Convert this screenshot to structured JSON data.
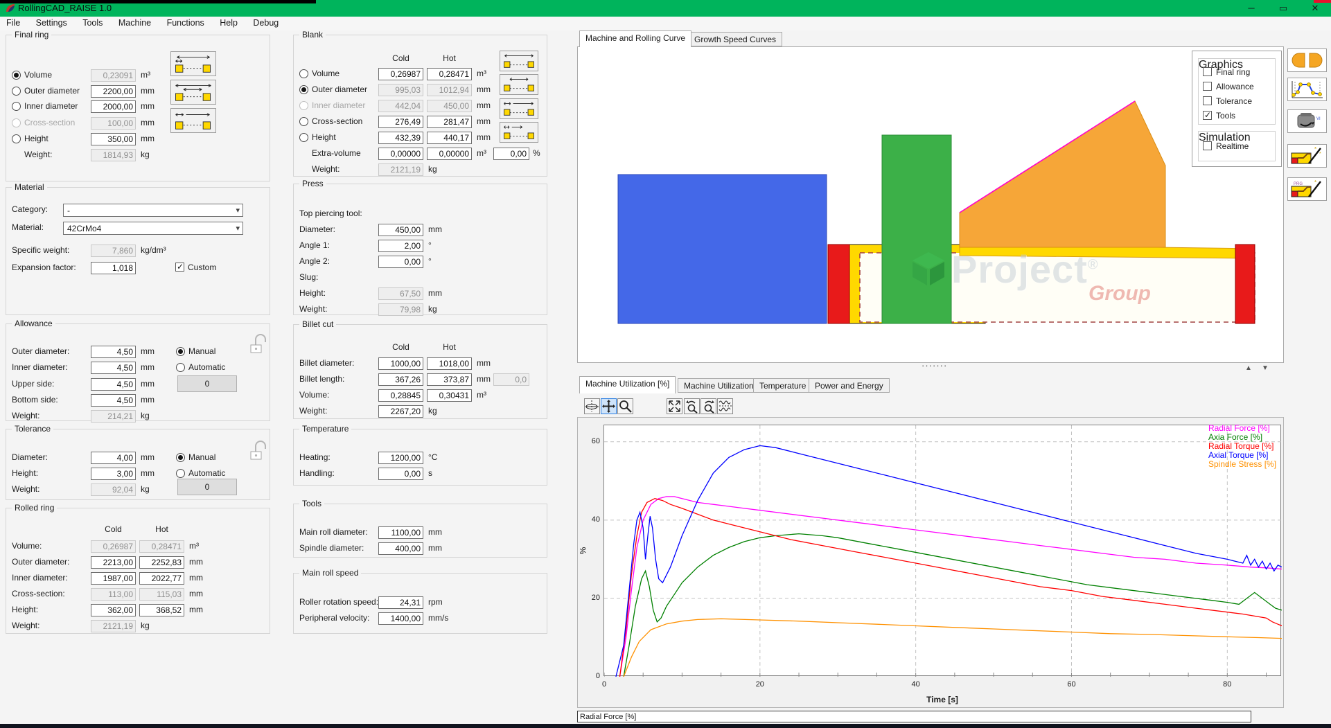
{
  "colors": {
    "titlebar": "#00b45c",
    "blue_shape": "#4468e8",
    "green_shape": "#3cb048",
    "orange_shape": "#f6a638",
    "yellow_shape": "#ffd800",
    "red_shape": "#e81a1a",
    "magenta_edge": "#ff00cc",
    "dashed_outline": "#a14040"
  },
  "window": {
    "title": "RollingCAD_RAISE 1.0",
    "minimize": "─",
    "maximize": "▭",
    "close": "✕"
  },
  "menu": {
    "items": [
      "File",
      "Settings",
      "Tools",
      "Machine",
      "Functions",
      "Help",
      "Debug"
    ]
  },
  "left": {
    "final_ring": {
      "title": "Final ring",
      "rows": [
        {
          "label": "Volume",
          "value": "0,23091",
          "unit": "m³"
        },
        {
          "label": "Outer diameter",
          "value": "2200,00",
          "unit": "mm"
        },
        {
          "label": "Inner diameter",
          "value": "2000,00",
          "unit": "mm"
        },
        {
          "label": "Cross-section",
          "value": "100,00",
          "unit": "mm"
        },
        {
          "label": "Height",
          "value": "350,00",
          "unit": "mm"
        },
        {
          "label": "Weight:",
          "value": "1814,93",
          "unit": "kg"
        }
      ]
    },
    "material": {
      "title": "Material",
      "category_label": "Category:",
      "category": "-",
      "material_label": "Material:",
      "material": "42CrMo4",
      "spec_label": "Specific weight:",
      "spec": "7,860",
      "spec_unit": "kg/dm³",
      "exp_label": "Expansion factor:",
      "exp": "1,018",
      "custom": "Custom"
    },
    "allowance": {
      "title": "Allowance",
      "rows": [
        {
          "label": "Outer diameter:",
          "value": "4,50",
          "unit": "mm"
        },
        {
          "label": "Inner diameter:",
          "value": "4,50",
          "unit": "mm"
        },
        {
          "label": "Upper side:",
          "value": "4,50",
          "unit": "mm"
        },
        {
          "label": "Bottom side:",
          "value": "4,50",
          "unit": "mm"
        },
        {
          "label": "Weight:",
          "value": "214,21",
          "unit": "kg"
        }
      ],
      "manual": "Manual",
      "automatic": "Automatic",
      "zero": "0"
    },
    "tolerance": {
      "title": "Tolerance",
      "rows": [
        {
          "label": "Diameter:",
          "value": "4,00",
          "unit": "mm"
        },
        {
          "label": "Height:",
          "value": "3,00",
          "unit": "mm"
        },
        {
          "label": "Weight:",
          "value": "92,04",
          "unit": "kg"
        }
      ],
      "manual": "Manual",
      "automatic": "Automatic",
      "zero": "0"
    },
    "rolled_ring": {
      "title": "Rolled ring",
      "cold": "Cold",
      "hot": "Hot",
      "rows": [
        {
          "label": "Volume:",
          "cold": "0,26987",
          "hot": "0,28471",
          "unit": "m³"
        },
        {
          "label": "Outer diameter:",
          "cold": "2213,00",
          "hot": "2252,83",
          "unit": "mm"
        },
        {
          "label": "Inner diameter:",
          "cold": "1987,00",
          "hot": "2022,77",
          "unit": "mm"
        },
        {
          "label": "Cross-section:",
          "cold": "113,00",
          "hot": "115,03",
          "unit": "mm"
        },
        {
          "label": "Height:",
          "cold": "362,00",
          "hot": "368,52",
          "unit": "mm"
        },
        {
          "label": "Weight:",
          "cold": "2121,19",
          "unit": "kg"
        }
      ]
    }
  },
  "middle": {
    "blank": {
      "title": "Blank",
      "cold": "Cold",
      "hot": "Hot",
      "rows": [
        {
          "label": "Volume",
          "cold": "0,26987",
          "hot": "0,28471",
          "unit": "m³"
        },
        {
          "label": "Outer diameter",
          "cold": "995,03",
          "hot": "1012,94",
          "unit": "mm"
        },
        {
          "label": "Inner diameter",
          "cold": "442,04",
          "hot": "450,00",
          "unit": "mm"
        },
        {
          "label": "Cross-section",
          "cold": "276,49",
          "hot": "281,47",
          "unit": "mm"
        },
        {
          "label": "Height",
          "cold": "432,39",
          "hot": "440,17",
          "unit": "mm"
        },
        {
          "label": "Extra-volume",
          "cold": "0,00000",
          "hot": "0,00000",
          "unit": "m³"
        }
      ],
      "extra_pct": "0,00",
      "pct_unit": "%",
      "weight_label": "Weight:",
      "weight": "2121,19",
      "weight_unit": "kg"
    },
    "press": {
      "title": "Press",
      "tool_label": "Top piercing tool:",
      "diameter": {
        "label": "Diameter:",
        "value": "450,00",
        "unit": "mm"
      },
      "angle1": {
        "label": "Angle 1:",
        "value": "2,00",
        "unit": "°"
      },
      "angle2": {
        "label": "Angle 2:",
        "value": "0,00",
        "unit": "°"
      },
      "slug_label": "Slug:",
      "height": {
        "label": "Height:",
        "value": "67,50",
        "unit": "mm"
      },
      "weight": {
        "label": "Weight:",
        "value": "79,98",
        "unit": "kg"
      }
    },
    "billet_cut": {
      "title": "Billet cut",
      "cold": "Cold",
      "hot": "Hot",
      "diameter": {
        "label": "Billet diameter:",
        "cold": "1000,00",
        "hot": "1018,00",
        "unit": "mm"
      },
      "length": {
        "label": "Billet length:",
        "cold": "367,26",
        "hot": "373,87",
        "unit": "mm",
        "extra": "0,0"
      },
      "volume": {
        "label": "Volume:",
        "cold": "0,28845",
        "hot": "0,30431",
        "unit": "m³"
      },
      "weight": {
        "label": "Weight:",
        "value": "2267,20",
        "unit": "kg"
      }
    },
    "temperature": {
      "title": "Temperature",
      "heating": {
        "label": "Heating:",
        "value": "1200,00",
        "unit": "°C"
      },
      "handling": {
        "label": "Handling:",
        "value": "0,00",
        "unit": "s"
      }
    },
    "tools": {
      "title": "Tools",
      "main_roll": {
        "label": "Main roll diameter:",
        "value": "1100,00",
        "unit": "mm"
      },
      "spindle": {
        "label": "Spindle diameter:",
        "value": "400,00",
        "unit": "mm"
      }
    },
    "main_roll_speed": {
      "title": "Main roll speed",
      "rotation": {
        "label": "Roller rotation speed:",
        "value": "24,31",
        "unit": "rpm"
      },
      "velocity": {
        "label": "Peripheral velocity:",
        "value": "1400,00",
        "unit": "mm/s"
      }
    }
  },
  "viewer": {
    "tabs": [
      "Machine and Rolling Curve",
      "Growth Speed Curves"
    ],
    "graphics": {
      "title": "Graphics",
      "items": [
        {
          "label": "Final ring",
          "checked": false
        },
        {
          "label": "Allowance",
          "checked": false
        },
        {
          "label": "Tolerance",
          "checked": false
        },
        {
          "label": "Tools",
          "checked": true
        }
      ]
    },
    "simulation": {
      "title": "Simulation",
      "realtime": "Realtime",
      "realtime_checked": false
    },
    "watermark": {
      "name": "Project",
      "reg": "®",
      "group": "Group"
    },
    "dots": "·······"
  },
  "right_toolbar": {
    "vi": "VI",
    "prg": "PRG"
  },
  "chart_tabs": [
    "Machine Utilization [%]",
    "Machine Utilization",
    "Temperature",
    "Power and Energy"
  ],
  "status_bar": "Radial Force [%]",
  "chart_data": {
    "type": "line",
    "title": "Machine Utilization [%]",
    "xlabel": "Time [s]",
    "ylabel": "%",
    "xlim": [
      0,
      87
    ],
    "ylim": [
      0,
      64.2
    ],
    "xticks": [
      0,
      20,
      40,
      60,
      80
    ],
    "yticks": [
      0,
      20,
      40,
      60
    ],
    "x_minor_step": 5,
    "grid": "dashed",
    "legend_position": "top-right",
    "series": [
      {
        "name": "Radial Force [%]",
        "color": "#ff00ff",
        "points": [
          [
            2,
            0
          ],
          [
            2.8,
            10
          ],
          [
            3.5,
            22
          ],
          [
            4.2,
            33
          ],
          [
            5,
            40
          ],
          [
            6,
            44
          ],
          [
            7,
            45.5
          ],
          [
            8,
            46
          ],
          [
            9,
            46
          ],
          [
            10,
            45.5
          ],
          [
            12,
            44.5
          ],
          [
            14,
            44
          ],
          [
            16,
            43.5
          ],
          [
            18,
            43
          ],
          [
            20,
            42.5
          ],
          [
            24,
            41.5
          ],
          [
            28,
            40.5
          ],
          [
            32,
            39.5
          ],
          [
            36,
            38.5
          ],
          [
            40,
            37.5
          ],
          [
            44,
            36.5
          ],
          [
            48,
            35.5
          ],
          [
            52,
            34.5
          ],
          [
            56,
            33.5
          ],
          [
            60,
            32.5
          ],
          [
            64,
            31.5
          ],
          [
            68,
            30.5
          ],
          [
            72,
            30
          ],
          [
            76,
            29
          ],
          [
            80,
            28.5
          ],
          [
            83,
            28
          ],
          [
            85,
            27.8
          ],
          [
            87,
            27.5
          ]
        ]
      },
      {
        "name": "Axia Force [%]",
        "color": "#008000",
        "points": [
          [
            2.5,
            0
          ],
          [
            3.2,
            8
          ],
          [
            4,
            18
          ],
          [
            4.8,
            25
          ],
          [
            5.3,
            27
          ],
          [
            5.8,
            23
          ],
          [
            6.3,
            17
          ],
          [
            6.8,
            14
          ],
          [
            7.3,
            15
          ],
          [
            8,
            18
          ],
          [
            9,
            21
          ],
          [
            10,
            24
          ],
          [
            12,
            28
          ],
          [
            14,
            31
          ],
          [
            16,
            33
          ],
          [
            18,
            34.5
          ],
          [
            20,
            35.5
          ],
          [
            22,
            36
          ],
          [
            25,
            36.5
          ],
          [
            28,
            36
          ],
          [
            30,
            35.5
          ],
          [
            34,
            34
          ],
          [
            38,
            32.5
          ],
          [
            42,
            31
          ],
          [
            46,
            29.5
          ],
          [
            50,
            28
          ],
          [
            54,
            26.5
          ],
          [
            58,
            25
          ],
          [
            62,
            23.5
          ],
          [
            66,
            22.5
          ],
          [
            70,
            21.5
          ],
          [
            74,
            20.5
          ],
          [
            78,
            19.5
          ],
          [
            80,
            19
          ],
          [
            81.5,
            18.5
          ],
          [
            82.5,
            20
          ],
          [
            83.5,
            21.5
          ],
          [
            84.5,
            20
          ],
          [
            85.5,
            18.5
          ],
          [
            86.2,
            17.5
          ],
          [
            87,
            17
          ]
        ]
      },
      {
        "name": "Radial Torque [%]",
        "color": "#ff0000",
        "points": [
          [
            2,
            0
          ],
          [
            2.8,
            12
          ],
          [
            3.5,
            26
          ],
          [
            4.2,
            36
          ],
          [
            4.8,
            42
          ],
          [
            5.5,
            44.5
          ],
          [
            6.5,
            45.5
          ],
          [
            7.5,
            45
          ],
          [
            8.5,
            44
          ],
          [
            10,
            43
          ],
          [
            12,
            41.5
          ],
          [
            14,
            40
          ],
          [
            16,
            39
          ],
          [
            18,
            38
          ],
          [
            20,
            37
          ],
          [
            24,
            35
          ],
          [
            28,
            33.5
          ],
          [
            32,
            32
          ],
          [
            36,
            30.5
          ],
          [
            40,
            29
          ],
          [
            44,
            27.5
          ],
          [
            48,
            26
          ],
          [
            52,
            24.5
          ],
          [
            56,
            23
          ],
          [
            60,
            22
          ],
          [
            64,
            20.5
          ],
          [
            68,
            19.5
          ],
          [
            72,
            18.5
          ],
          [
            76,
            17.5
          ],
          [
            80,
            16.5
          ],
          [
            82,
            16
          ],
          [
            83.5,
            15.5
          ],
          [
            85,
            15
          ],
          [
            85.8,
            14
          ],
          [
            86.4,
            13.5
          ],
          [
            87,
            13
          ]
        ]
      },
      {
        "name": "Axial Torque [%]",
        "color": "#0000ff",
        "points": [
          [
            1.5,
            0
          ],
          [
            2.5,
            8
          ],
          [
            3.2,
            22
          ],
          [
            3.8,
            34
          ],
          [
            4.2,
            40
          ],
          [
            4.6,
            42
          ],
          [
            5,
            38
          ],
          [
            5.3,
            30
          ],
          [
            5.6,
            36
          ],
          [
            5.9,
            41
          ],
          [
            6.2,
            38
          ],
          [
            6.6,
            30
          ],
          [
            7,
            25
          ],
          [
            7.5,
            24
          ],
          [
            8.5,
            28
          ],
          [
            10,
            36
          ],
          [
            12,
            45
          ],
          [
            14,
            52
          ],
          [
            16,
            56
          ],
          [
            18,
            58
          ],
          [
            20,
            59
          ],
          [
            22,
            58.5
          ],
          [
            25,
            57
          ],
          [
            28,
            55.5
          ],
          [
            32,
            53.5
          ],
          [
            36,
            51.5
          ],
          [
            40,
            49.5
          ],
          [
            44,
            47.5
          ],
          [
            48,
            45.5
          ],
          [
            52,
            43.5
          ],
          [
            56,
            41.5
          ],
          [
            60,
            39.5
          ],
          [
            64,
            37.5
          ],
          [
            68,
            35.5
          ],
          [
            72,
            33.5
          ],
          [
            76,
            31.5
          ],
          [
            80,
            30
          ],
          [
            81,
            29.5
          ],
          [
            82,
            29
          ],
          [
            82.5,
            31
          ],
          [
            83,
            28.5
          ],
          [
            83.5,
            30
          ],
          [
            84,
            28
          ],
          [
            84.5,
            29.5
          ],
          [
            85,
            27.5
          ],
          [
            85.5,
            29
          ],
          [
            86,
            27
          ],
          [
            86.5,
            28.5
          ],
          [
            87,
            28
          ]
        ]
      },
      {
        "name": "Spindle Stress [%]",
        "color": "#ff9100",
        "points": [
          [
            2.5,
            0
          ],
          [
            3.5,
            5
          ],
          [
            4.5,
            9
          ],
          [
            6,
            12
          ],
          [
            8,
            13.5
          ],
          [
            10,
            14.2
          ],
          [
            12,
            14.6
          ],
          [
            15,
            14.8
          ],
          [
            20,
            14.5
          ],
          [
            25,
            14.2
          ],
          [
            30,
            13.8
          ],
          [
            35,
            13.4
          ],
          [
            40,
            13
          ],
          [
            45,
            12.6
          ],
          [
            50,
            12.2
          ],
          [
            55,
            11.8
          ],
          [
            60,
            11.4
          ],
          [
            65,
            11
          ],
          [
            70,
            10.8
          ],
          [
            75,
            10.5
          ],
          [
            80,
            10.2
          ],
          [
            84,
            10
          ],
          [
            87,
            9.8
          ]
        ]
      }
    ]
  }
}
